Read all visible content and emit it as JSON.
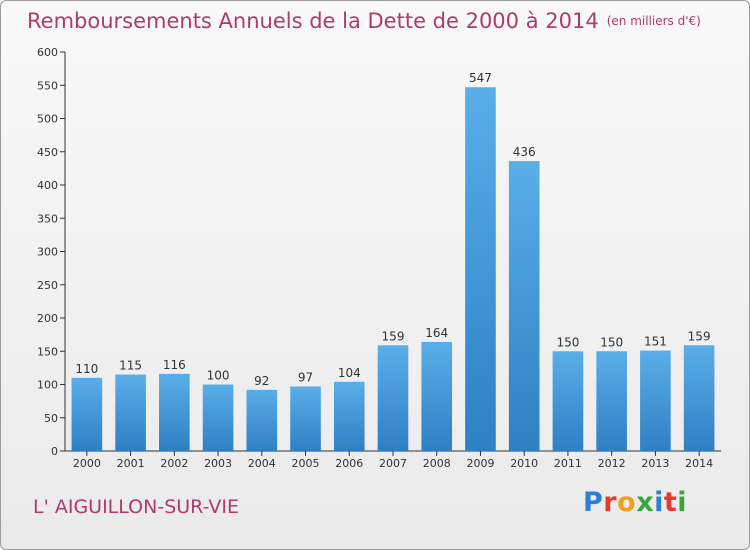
{
  "title": "Remboursements Annuels de la Dette de 2000 à 2014",
  "unit": "(en milliers d'€)",
  "commune": "L' AIGUILLON-SUR-VIE",
  "logo": {
    "letters": [
      "P",
      "r",
      "o",
      "x",
      "i",
      "t",
      "i"
    ],
    "colors": [
      "#2b7fd6",
      "#e53b2f",
      "#f0a020",
      "#3aa63a",
      "#2b7fd6",
      "#e53b2f",
      "#3aa63a"
    ]
  },
  "colors": {
    "bar_light": "#5aaee8",
    "bar_dark": "#2f7fc4",
    "title": "#b03a6e"
  },
  "chart_data": {
    "type": "bar",
    "categories": [
      "2000",
      "2001",
      "2002",
      "2003",
      "2004",
      "2005",
      "2006",
      "2007",
      "2008",
      "2009",
      "2010",
      "2011",
      "2012",
      "2013",
      "2014"
    ],
    "values": [
      110,
      115,
      116,
      100,
      92,
      97,
      104,
      159,
      164,
      547,
      436,
      150,
      150,
      151,
      159
    ],
    "ylim": [
      0,
      600
    ],
    "yticks": [
      0,
      50,
      100,
      150,
      200,
      250,
      300,
      350,
      400,
      450,
      500,
      550,
      600
    ],
    "grid": false
  }
}
